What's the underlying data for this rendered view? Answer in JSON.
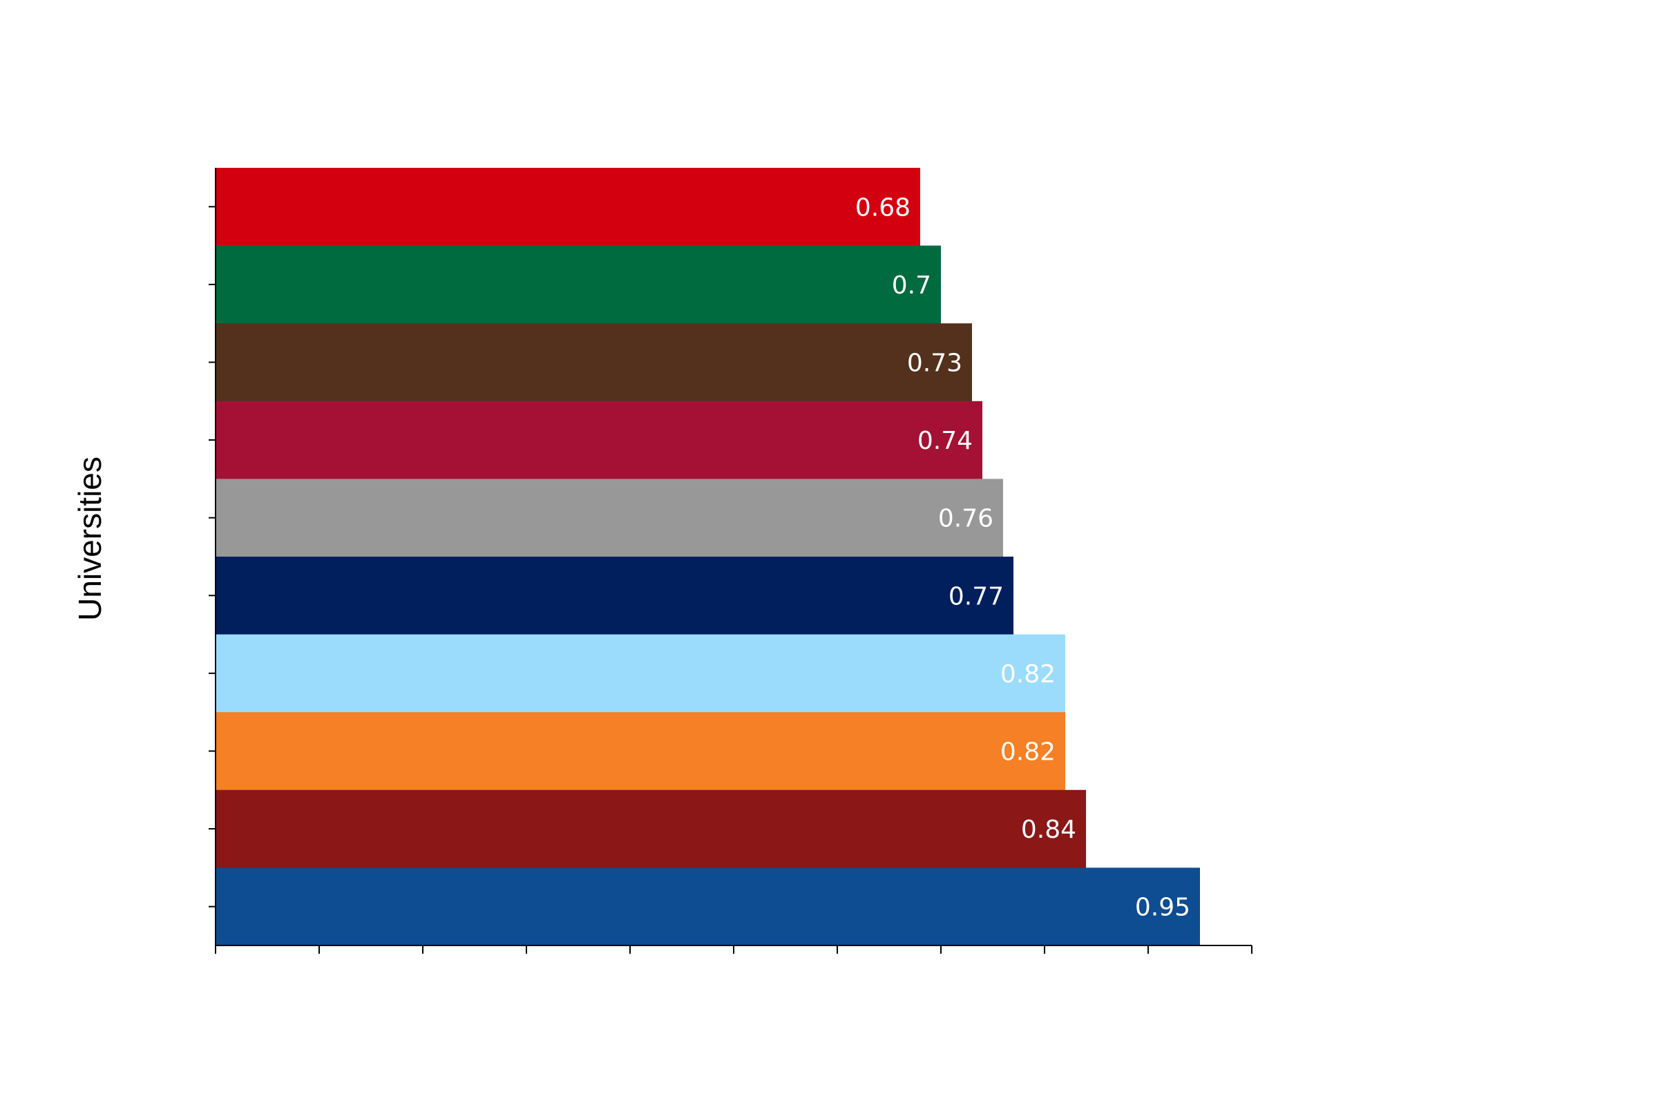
{
  "chart_data": {
    "type": "bar",
    "orientation": "horizontal",
    "title": "",
    "xlabel": "",
    "ylabel": "Universities",
    "xlim": [
      0,
      1
    ],
    "x_ticks": [
      0,
      0.1,
      0.2,
      0.3,
      0.4,
      0.5,
      0.6,
      0.7,
      0.8,
      0.9,
      1.0
    ],
    "x_tick_labels_visible": false,
    "y_tick_labels_visible": false,
    "grid": false,
    "legend": "none",
    "bars": [
      {
        "value": 0.68,
        "label": "0.68",
        "color": "#d3000f"
      },
      {
        "value": 0.7,
        "label": "0.7",
        "color": "#006b3f"
      },
      {
        "value": 0.73,
        "label": "0.73",
        "color": "#54311d"
      },
      {
        "value": 0.74,
        "label": "0.74",
        "color": "#a51134"
      },
      {
        "value": 0.76,
        "label": "0.76",
        "color": "#989898"
      },
      {
        "value": 0.77,
        "label": "0.77",
        "color": "#001f5c"
      },
      {
        "value": 0.82,
        "label": "0.82",
        "color": "#9bdcfd"
      },
      {
        "value": 0.82,
        "label": "0.82",
        "color": "#f58025"
      },
      {
        "value": 0.84,
        "label": "0.84",
        "color": "#8b1717"
      },
      {
        "value": 0.95,
        "label": "0.95",
        "color": "#0f4d92"
      }
    ]
  }
}
